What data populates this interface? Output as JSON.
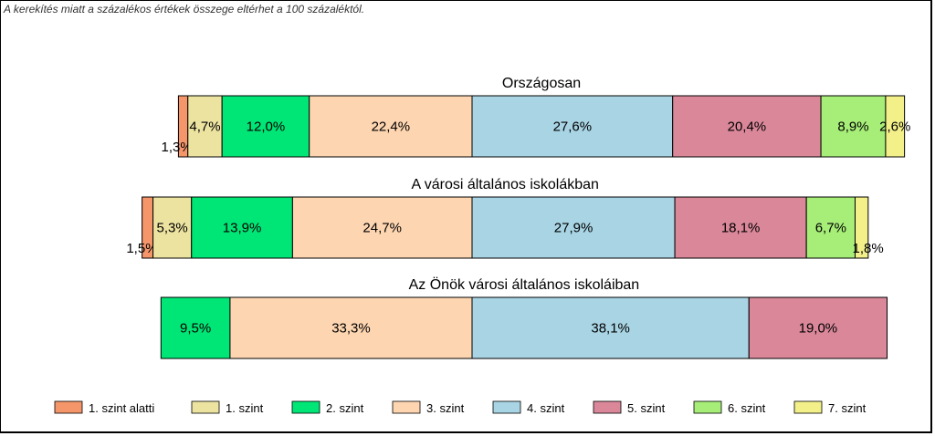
{
  "note": "A kerekítés miatt a  százalékos értékek összege eltérhet a 100 százaléktól.",
  "chart_data": {
    "type": "bar",
    "orientation": "horizontal-stacked",
    "note": "A kerekítés miatt a  százalékos értékek összege eltérhet a 100 százaléktól.",
    "legend_position": "bottom",
    "series": [
      {
        "name": "1. szint alatti",
        "color": "#f4956a"
      },
      {
        "name": "1. szint",
        "color": "#ece3a0"
      },
      {
        "name": "2. szint",
        "color": "#00e676"
      },
      {
        "name": "3. szint",
        "color": "#fdd5b0"
      },
      {
        "name": "4. szint",
        "color": "#a8d4e4"
      },
      {
        "name": "5. szint",
        "color": "#d98799"
      },
      {
        "name": "6. szint",
        "color": "#a6ee78"
      },
      {
        "name": "7. szint",
        "color": "#f3f08a"
      }
    ],
    "groups": [
      {
        "title": "Országosan",
        "values": [
          1.3,
          4.7,
          12.0,
          22.4,
          27.6,
          20.4,
          8.9,
          2.6
        ],
        "labels": [
          "1,3%",
          "4,7%",
          "12,0%",
          "22,4%",
          "27,6%",
          "20,4%",
          "8,9%",
          "2,6%"
        ],
        "center_value": 40.4
      },
      {
        "title": "A városi általános iskolákban",
        "values": [
          1.5,
          5.3,
          13.9,
          24.7,
          27.9,
          18.1,
          6.7,
          1.8
        ],
        "labels": [
          "1,5%",
          "5,3%",
          "13,9%",
          "24,7%",
          "27,9%",
          "18,1%",
          "6,7%",
          "1,8%"
        ],
        "center_value": 45.4
      },
      {
        "title": "Az Önök városi általános iskoláiban",
        "values": [
          0,
          0,
          9.5,
          33.3,
          38.1,
          19.0,
          0,
          0
        ],
        "labels": [
          "",
          "",
          "9,5%",
          "33,3%",
          "38,1%",
          "19,0%",
          "",
          ""
        ],
        "center_value": 42.8
      }
    ]
  }
}
